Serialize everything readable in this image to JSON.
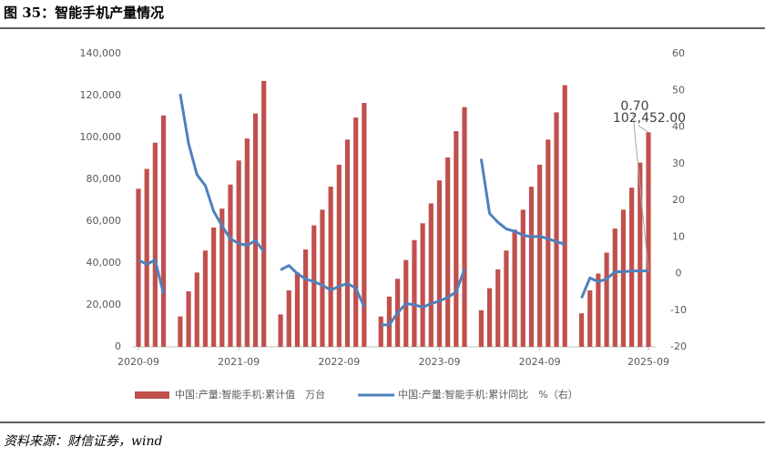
{
  "header": {
    "title": "图 35：智能手机产量情况"
  },
  "chart_data": {
    "type": "bar-line",
    "categories": [
      "2020-09",
      null,
      null,
      null,
      null,
      null,
      null,
      null,
      null,
      null,
      null,
      null,
      "2021-09",
      null,
      null,
      null,
      null,
      null,
      null,
      null,
      null,
      null,
      null,
      null,
      "2022-09",
      null,
      null,
      null,
      null,
      null,
      null,
      null,
      null,
      null,
      null,
      null,
      "2023-09",
      null,
      null,
      null,
      null,
      null,
      null,
      null,
      null,
      null,
      null,
      null,
      "2024-09",
      null,
      null,
      null,
      null,
      null,
      null,
      null,
      null,
      null,
      null,
      null,
      null,
      "2025-09"
    ],
    "series": [
      {
        "name": "中国:产量:智能手机:累计值　万台",
        "color": "#c0504d",
        "kind": "bar",
        "values": [
          75500,
          85000,
          97500,
          110500,
          null,
          14500,
          26500,
          35500,
          46000,
          57000,
          66000,
          77500,
          89000,
          99500,
          111500,
          127000,
          null,
          15500,
          27000,
          35500,
          46500,
          58000,
          65500,
          76500,
          87000,
          99000,
          109500,
          116500,
          null,
          14500,
          24000,
          32500,
          41500,
          51000,
          59000,
          68500,
          79500,
          90500,
          103000,
          114500,
          null,
          17500,
          28000,
          37000,
          46000,
          56000,
          65500,
          76500,
          87000,
          99000,
          112000,
          125000,
          null,
          16000,
          27000,
          35000,
          45000,
          56500,
          65500,
          76000,
          88000,
          102452
        ],
        "value_labels": [
          null,
          null,
          null,
          null,
          null,
          null,
          null,
          null,
          null,
          null,
          null,
          null,
          null,
          null,
          null,
          null,
          null,
          null,
          null,
          null,
          null,
          null,
          null,
          null,
          null,
          null,
          null,
          null,
          null,
          null,
          null,
          null,
          null,
          null,
          null,
          null,
          null,
          null,
          null,
          null,
          null,
          null,
          null,
          null,
          null,
          null,
          null,
          null,
          null,
          null,
          null,
          null,
          null,
          null,
          null,
          null,
          null,
          null,
          null,
          null,
          null,
          "102,452.00"
        ]
      },
      {
        "name": "中国:产量:智能手机:累计同比　%（右）",
        "color": "#4f81bd",
        "kind": "line",
        "axis": "y2",
        "values": [
          3.7,
          2.5,
          3.7,
          -5.5,
          null,
          49,
          35.5,
          27,
          24,
          17,
          13,
          9.5,
          8.2,
          7.7,
          9,
          6,
          null,
          1,
          2.2,
          0,
          -1.5,
          -2.2,
          -3.2,
          -4.5,
          -3.5,
          -2.7,
          -4,
          -9,
          null,
          -14,
          -14,
          -10.7,
          -8.2,
          -8.5,
          -9.2,
          -8.2,
          -7.5,
          -6.5,
          -5,
          1.2,
          null,
          31.3,
          16.4,
          14,
          12.2,
          11.5,
          10.5,
          10,
          10.2,
          9.5,
          8.7,
          8,
          null,
          -6.7,
          -1.2,
          -2.2,
          -1.5,
          0.5,
          0.5,
          0.7,
          0.7,
          0.7
        ],
        "value_labels": [
          null,
          null,
          null,
          null,
          null,
          null,
          null,
          null,
          null,
          null,
          null,
          null,
          null,
          null,
          null,
          null,
          null,
          null,
          null,
          null,
          null,
          null,
          null,
          null,
          null,
          null,
          null,
          null,
          null,
          null,
          null,
          null,
          null,
          null,
          null,
          null,
          null,
          null,
          null,
          null,
          null,
          null,
          null,
          null,
          null,
          null,
          null,
          null,
          null,
          null,
          null,
          null,
          null,
          null,
          null,
          null,
          null,
          null,
          null,
          null,
          null,
          "0.70"
        ]
      }
    ],
    "ylim": [
      0,
      140000
    ],
    "yticks": [
      0,
      {
        "value": 20000,
        "label": "20,000"
      },
      {
        "value": 40000,
        "label": "40,000"
      },
      {
        "value": 60000,
        "label": "60,000"
      },
      {
        "value": 80000,
        "label": "80,000"
      },
      {
        "value": 100000,
        "label": "100,000"
      },
      {
        "value": 120000,
        "label": "120,000"
      },
      {
        "value": 140000,
        "label": "140,000"
      }
    ],
    "y2lim": [
      -20,
      60
    ],
    "y2ticks": [
      -20,
      -10,
      0,
      10,
      20,
      30,
      40,
      50,
      60
    ],
    "grid": false,
    "legend": "bottom"
  },
  "source": "资料来源：财信证券，wind"
}
